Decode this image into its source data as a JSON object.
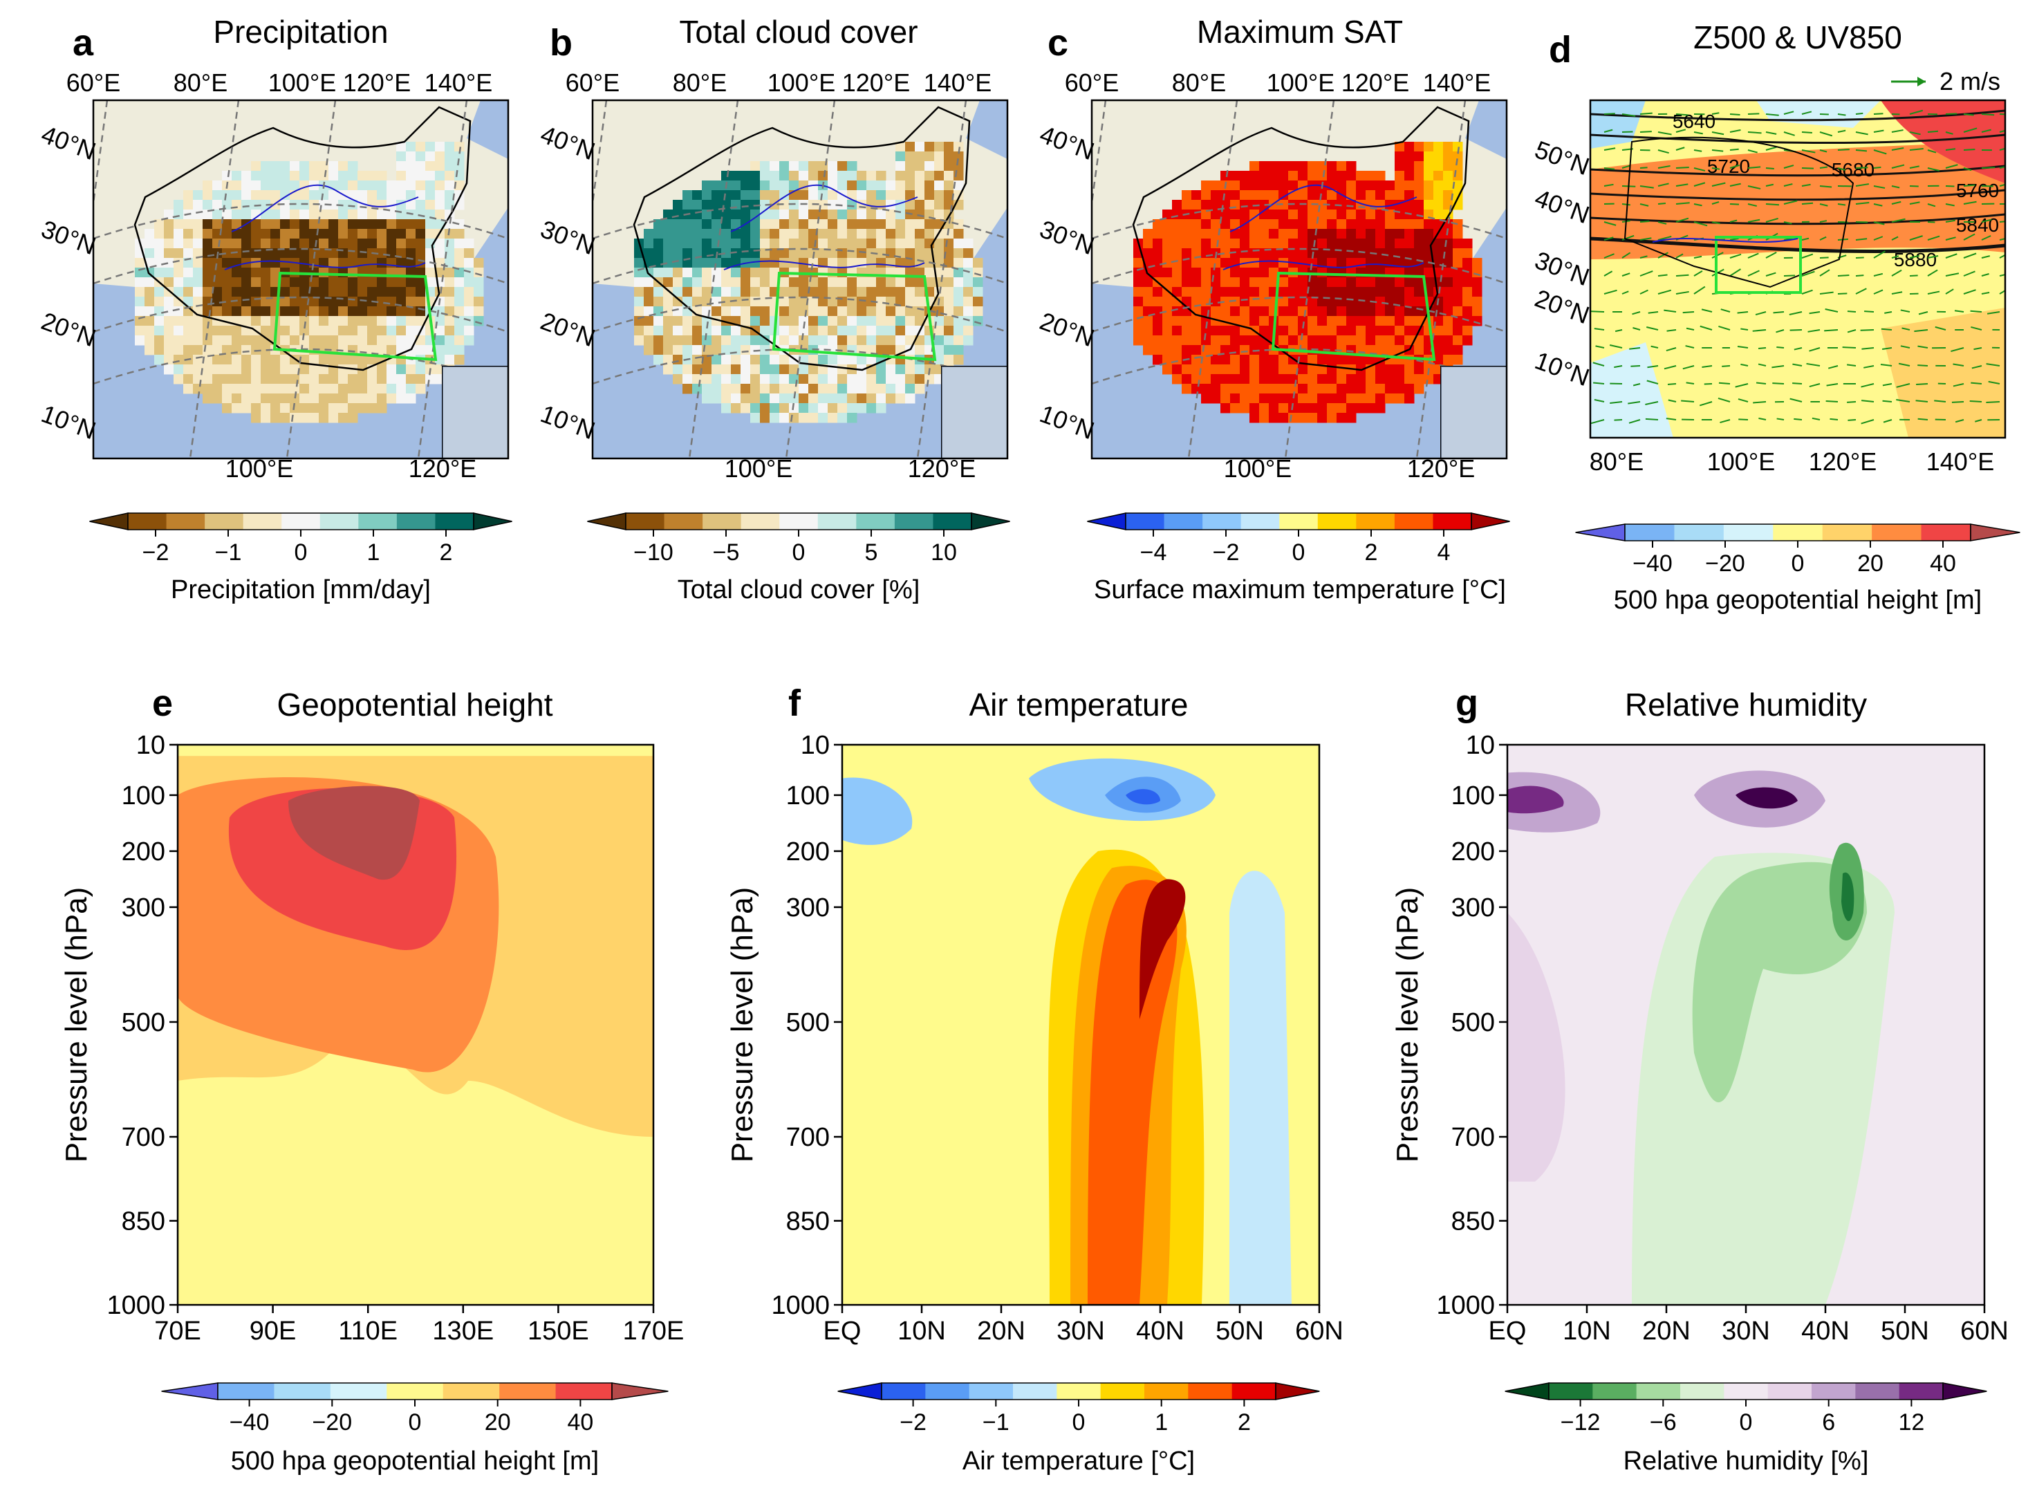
{
  "figure": {
    "panels": [
      {
        "letter": "a",
        "title": "Precipitation",
        "cbar_label": "Precipitation [mm/day]",
        "cbar_ticks": [
          "−2",
          "−1",
          "0",
          "1",
          "2"
        ]
      },
      {
        "letter": "b",
        "title": "Total cloud cover",
        "cbar_label": "Total cloud cover [%]",
        "cbar_ticks": [
          "−10",
          "−5",
          "0",
          "5",
          "10"
        ]
      },
      {
        "letter": "c",
        "title": "Maximum SAT",
        "cbar_label": "Surface maximum temperature [°C]",
        "cbar_ticks": [
          "−4",
          "−2",
          "0",
          "2",
          "4"
        ]
      },
      {
        "letter": "d",
        "title": "Z500 & UV850",
        "cbar_label": "500 hpa geopotential height [m]",
        "cbar_ticks": [
          "−40",
          "−20",
          "0",
          "20",
          "40"
        ],
        "vector_key": "2 m/s",
        "contour_labels": [
          "5640",
          "5720",
          "5680",
          "5760",
          "5840",
          "5880"
        ]
      },
      {
        "letter": "e",
        "title": "Geopotential height",
        "cbar_label": "500 hpa geopotential height [m]",
        "cbar_ticks": [
          "−40",
          "−20",
          "0",
          "20",
          "40"
        ]
      },
      {
        "letter": "f",
        "title": "Air temperature",
        "cbar_label": "Air temperature [°C]",
        "cbar_ticks": [
          "−2",
          "−1",
          "0",
          "1",
          "2"
        ]
      },
      {
        "letter": "g",
        "title": "Relative humidity",
        "cbar_label": "Relative humidity [%]",
        "cbar_ticks": [
          "−12",
          "−6",
          "0",
          "6",
          "12"
        ]
      }
    ],
    "map_lon_top": [
      "60°E",
      "80°E",
      "100°E",
      "120°E",
      "140°E"
    ],
    "map_lon_bottom": [
      "100°E",
      "120°E"
    ],
    "map_lat": [
      "40°N",
      "30°N",
      "20°N",
      "10°N"
    ],
    "d_lat": [
      "50°N",
      "40°N",
      "30°N",
      "20°N",
      "10°N"
    ],
    "d_lon": [
      "80°E",
      "100°E",
      "120°E",
      "140°E"
    ],
    "colors": {
      "brbg": [
        "#543005",
        "#8c510a",
        "#bf812d",
        "#dfc27d",
        "#f6e8c3",
        "#f5f5f5",
        "#c7eae5",
        "#80cdc1",
        "#35978f",
        "#01665e",
        "#003c30"
      ],
      "temp": [
        "#0a1fd6",
        "#2b62f0",
        "#5a9df5",
        "#8fc8fb",
        "#c4e8fb",
        "#fffb8c",
        "#ffd700",
        "#ffa500",
        "#ff5a00",
        "#e60000",
        "#a30000"
      ],
      "z500": [
        "#6060e6",
        "#7ab4f5",
        "#a9dcf7",
        "#d5f3fb",
        "#fff98f",
        "#ffd36a",
        "#ff8c40",
        "#f04545",
        "#b54a4a"
      ],
      "rh": [
        "#00441b",
        "#1b7837",
        "#5aae61",
        "#a6dba0",
        "#d9f0d3",
        "#f1e8f1",
        "#e7d4e8",
        "#c2a5cf",
        "#9970ab",
        "#762a83",
        "#40004b"
      ],
      "land": "#eeecdc",
      "ocean": "#a3bde3",
      "box": "#27e13a",
      "rivers": "#1a1acc"
    }
  },
  "chart_data": [
    {
      "type": "heatmap",
      "panel": "a",
      "field": "precipitation anomaly",
      "unit": "mm/day",
      "levels": [
        -2,
        -1.6,
        -1.2,
        -0.8,
        -0.4,
        0,
        0.4,
        0.8,
        1.2,
        1.6,
        2
      ],
      "region_box_lon": [
        102,
        122
      ],
      "region_box_lat": [
        24,
        31
      ]
    },
    {
      "type": "heatmap",
      "panel": "b",
      "field": "total cloud cover anomaly",
      "unit": "%",
      "levels": [
        -10,
        -8,
        -6,
        -4,
        -2,
        0,
        2,
        4,
        6,
        8,
        10
      ],
      "region_box_lon": [
        102,
        122
      ],
      "region_box_lat": [
        24,
        31
      ]
    },
    {
      "type": "heatmap",
      "panel": "c",
      "field": "surface maximum temperature anomaly",
      "unit": "°C",
      "levels": [
        -5,
        -4,
        -3,
        -2,
        -1,
        0,
        1,
        2,
        3,
        4,
        5
      ],
      "region_box_lon": [
        102,
        122
      ],
      "region_box_lat": [
        24,
        31
      ]
    },
    {
      "type": "heatmap",
      "panel": "d",
      "field": "Z500 anomaly with 850hPa winds",
      "unit": "m",
      "levels": [
        -50,
        -40,
        -30,
        -20,
        -10,
        0,
        10,
        20,
        30,
        40,
        50
      ],
      "contours": [
        5640,
        5680,
        5720,
        5760,
        5840,
        5880
      ],
      "vector_key": "2 m/s"
    },
    {
      "type": "heatmap",
      "panel": "e",
      "xlabel": "",
      "ylabel": "Pressure level (hPa)",
      "x_ticks": [
        "70E",
        "90E",
        "110E",
        "130E",
        "150E",
        "170E"
      ],
      "y_ticks": [
        "10",
        "100",
        "200",
        "300",
        "500",
        "700",
        "850",
        "1000"
      ],
      "xlim": [
        70,
        170
      ],
      "ylim": [
        1000,
        10
      ],
      "max": {
        "x": 103,
        "y": 150,
        "value": 45
      }
    },
    {
      "type": "heatmap",
      "panel": "f",
      "xlabel": "",
      "ylabel": "Pressure level (hPa)",
      "x_ticks": [
        "EQ",
        "10N",
        "20N",
        "30N",
        "40N",
        "50N",
        "60N"
      ],
      "y_ticks": [
        "10",
        "100",
        "200",
        "300",
        "500",
        "700",
        "850",
        "1000"
      ],
      "xlim": [
        0,
        60
      ],
      "ylim": [
        1000,
        10
      ],
      "max": {
        "x": 38,
        "y": 300,
        "value": 2.5
      },
      "min": {
        "x": 40,
        "y": 100,
        "value": -2.2
      }
    },
    {
      "type": "heatmap",
      "panel": "g",
      "xlabel": "",
      "ylabel": "Pressure level (hPa)",
      "x_ticks": [
        "EQ",
        "10N",
        "20N",
        "30N",
        "40N",
        "50N",
        "60N"
      ],
      "y_ticks": [
        "10",
        "100",
        "200",
        "300",
        "500",
        "700",
        "850",
        "1000"
      ],
      "xlim": [
        0,
        60
      ],
      "ylim": [
        1000,
        10
      ],
      "max": {
        "x": 34,
        "y": 100,
        "value": 14
      },
      "min": {
        "x": 46,
        "y": 250,
        "value": -12
      }
    }
  ]
}
